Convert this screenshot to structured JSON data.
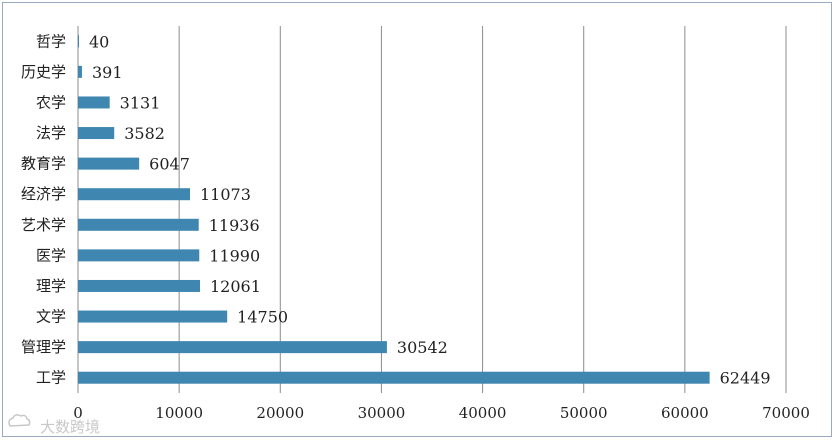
{
  "chart_data": {
    "type": "bar",
    "orientation": "horizontal",
    "categories": [
      "工学",
      "管理学",
      "文学",
      "理学",
      "医学",
      "艺术学",
      "经济学",
      "教育学",
      "法学",
      "农学",
      "历史学",
      "哲学"
    ],
    "values": [
      62449,
      30542,
      14750,
      12061,
      11990,
      11936,
      11073,
      6047,
      3582,
      3131,
      391,
      40
    ],
    "value_labels": [
      "62449",
      "30542",
      "14750",
      "12061",
      "11990",
      "11936",
      "11073",
      "6047",
      "3582",
      "3131",
      "391",
      "40"
    ],
    "xlim": [
      0,
      70000
    ],
    "x_ticks": [
      0,
      10000,
      20000,
      30000,
      40000,
      50000,
      60000,
      70000
    ],
    "x_tick_labels": [
      "0",
      "10000",
      "20000",
      "30000",
      "40000",
      "50000",
      "60000",
      "70000"
    ],
    "grid": true,
    "legend": "none",
    "bar_color": "#3f87b0",
    "grid_color": "#8c8c8c"
  },
  "watermark": {
    "text": "大数跨境",
    "icon": "cloud-logo-icon"
  }
}
